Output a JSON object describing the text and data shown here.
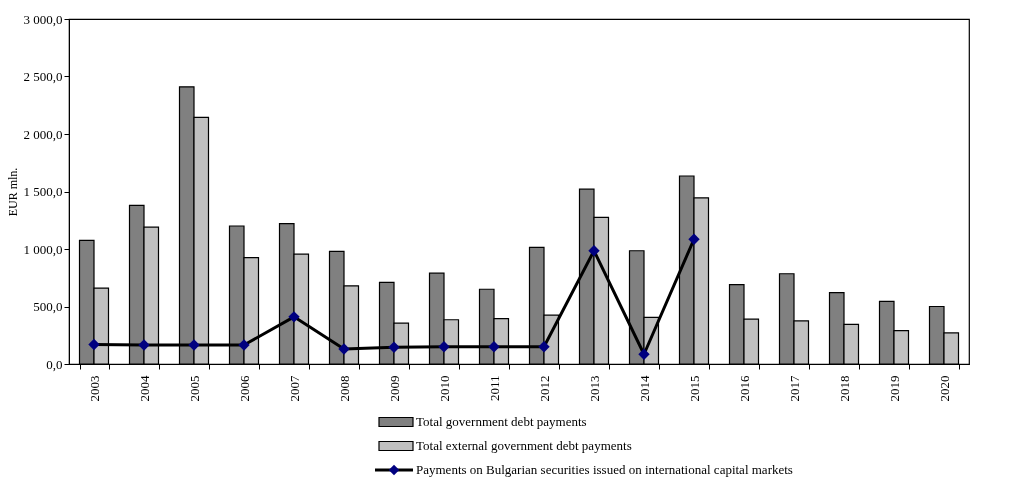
{
  "chart_data": {
    "type": "bar",
    "ylabel": "EUR mln.",
    "categories": [
      "2003",
      "2004",
      "2005",
      "2006",
      "2007",
      "2008",
      "2009",
      "2010",
      "2011",
      "2012",
      "2013",
      "2014",
      "2015",
      "2016",
      "2017",
      "2018",
      "2019",
      "2020"
    ],
    "series": [
      {
        "name": "Total government debt payments",
        "color": "#808080",
        "values": [
          1075,
          1380,
          2410,
          1200,
          1220,
          980,
          710,
          790,
          650,
          1015,
          1520,
          985,
          1635,
          690,
          785,
          620,
          545,
          500
        ]
      },
      {
        "name": "Total external government debt payments",
        "color": "#c0c0c0",
        "values": [
          660,
          1190,
          2145,
          925,
          955,
          680,
          355,
          385,
          395,
          425,
          1275,
          405,
          1445,
          390,
          375,
          345,
          290,
          270
        ]
      },
      {
        "name": "Payments on Bulgarian securities issued on international capital markets",
        "type": "line",
        "color": "#000080",
        "marker": "diamond",
        "values": [
          170,
          165,
          165,
          165,
          410,
          130,
          145,
          150,
          150,
          150,
          985,
          85,
          1085,
          null,
          null,
          null,
          null,
          null
        ]
      }
    ],
    "ylim": [
      0,
      3000
    ],
    "yticks": [
      {
        "value": 0,
        "label": "0,0"
      },
      {
        "value": 500,
        "label": "500,0"
      },
      {
        "value": 1000,
        "label": "1 000,0"
      },
      {
        "value": 1500,
        "label": "1 500,0"
      },
      {
        "value": 2000,
        "label": "2 000,0"
      },
      {
        "value": 2500,
        "label": "2 500,0"
      },
      {
        "value": 3000,
        "label": "3 000,0"
      }
    ],
    "grid": false,
    "legend": "bottom"
  }
}
